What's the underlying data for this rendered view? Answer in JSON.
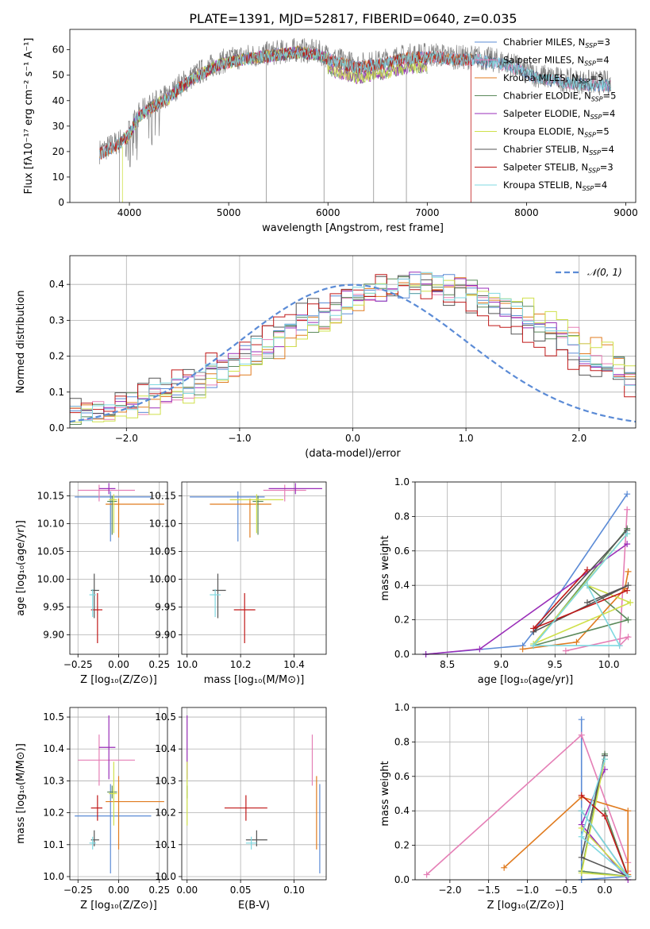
{
  "figure": {
    "title": "PLATE=1391, MJD=52817, FIBERID=0640, z=0.035"
  },
  "colors": {
    "Chabrier MILES": "#5b8bd6",
    "Salpeter MILES": "#e57fb6",
    "Kroupa MILES": "#e07b1f",
    "Chabrier ELODIE": "#5c8a5c",
    "Salpeter ELODIE": "#9a2eb8",
    "Kroupa ELODIE": "#cfe04a",
    "Chabrier STELIB": "#555555",
    "Salpeter STELIB": "#c01818",
    "Kroupa STELIB": "#7fd8e0",
    "gaussian": "#5b8bd6"
  },
  "chart_data": [
    {
      "id": "spectrum",
      "type": "line",
      "xlabel": "wavelength [Angstrom, rest frame]",
      "ylabel": "Flux [fλ10⁻¹⁷ erg cm⁻² s⁻¹ A⁻¹]",
      "xlim": [
        3400,
        9100
      ],
      "ylim": [
        0,
        68
      ],
      "xticks": [
        4000,
        5000,
        6000,
        7000,
        8000,
        9000
      ],
      "yticks": [
        0,
        10,
        20,
        30,
        40,
        50,
        60
      ],
      "legend_position": "right",
      "series": [
        {
          "name": "Chabrier MILES, N",
          "sub": "SSP",
          "suffix": "=3",
          "key": "Chabrier MILES"
        },
        {
          "name": "Salpeter MILES, N",
          "sub": "SSP",
          "suffix": "=4",
          "key": "Salpeter MILES"
        },
        {
          "name": "Kroupa MILES, N",
          "sub": "SSP",
          "suffix": "=5",
          "key": "Kroupa MILES"
        },
        {
          "name": "Chabrier ELODIE, N",
          "sub": "SSP",
          "suffix": "=5",
          "key": "Chabrier ELODIE"
        },
        {
          "name": "Salpeter ELODIE, N",
          "sub": "SSP",
          "suffix": "=4",
          "key": "Salpeter ELODIE"
        },
        {
          "name": "Kroupa ELODIE, N",
          "sub": "SSP",
          "suffix": "=5",
          "key": "Kroupa ELODIE"
        },
        {
          "name": "Chabrier STELIB, N",
          "sub": "SSP",
          "suffix": "=4",
          "key": "Chabrier STELIB"
        },
        {
          "name": "Salpeter STELIB, N",
          "sub": "SSP",
          "suffix": "=3",
          "key": "Salpeter STELIB"
        },
        {
          "name": "Kroupa STELIB, N",
          "sub": "SSP",
          "suffix": "=4",
          "key": "Kroupa STELIB"
        }
      ],
      "envelope": {
        "wavelength": [
          3700,
          3800,
          3900,
          4000,
          4100,
          4200,
          4300,
          4400,
          4500,
          4700,
          4900,
          5100,
          5300,
          5500,
          5700,
          5900,
          6100,
          6300,
          6500,
          6700,
          6900,
          7100,
          7300,
          7500,
          7800,
          8100,
          8400,
          8700,
          8850
        ],
        "flux": [
          20,
          22,
          24,
          28,
          35,
          38,
          40,
          42,
          46,
          51,
          55,
          57,
          58,
          59,
          60,
          59,
          56,
          54,
          55,
          57,
          58,
          58,
          57,
          57,
          55,
          50,
          48,
          47,
          47
        ]
      }
    },
    {
      "id": "residuals",
      "type": "histogram",
      "xlabel": "(data-model)/error",
      "ylabel": "Normed distribution",
      "xlim": [
        -2.5,
        2.5
      ],
      "ylim": [
        0,
        0.48
      ],
      "xticks": [
        -2,
        -1,
        0,
        1,
        2
      ],
      "yticks": [
        0.0,
        0.1,
        0.2,
        0.3,
        0.4
      ],
      "legend": "𝒩(0, 1)",
      "gaussian": {
        "mu": 0,
        "sigma": 1
      }
    },
    {
      "id": "age_vs_Z",
      "type": "scatter",
      "xlabel": "Z [log₁₀(Z/Z⊙)]",
      "ylabel": "age  [log₁₀(age/yr)]",
      "xlim": [
        -0.3,
        0.3
      ],
      "ylim": [
        9.865,
        10.175
      ],
      "xticks": [
        -0.25,
        0.0,
        0.25
      ],
      "yticks": [
        9.9,
        9.95,
        10.0,
        10.05,
        10.1,
        10.15
      ]
    },
    {
      "id": "age_vs_mass",
      "type": "scatter",
      "xlabel": "mass [log₁₀(M/M⊙)]",
      "xlim": [
        9.98,
        10.52
      ],
      "ylim": [
        9.865,
        10.175
      ],
      "xticks": [
        10.0,
        10.2,
        10.4
      ],
      "yticks": [
        9.9,
        9.95,
        10.0,
        10.05,
        10.1,
        10.15
      ]
    },
    {
      "id": "weight_vs_age",
      "type": "line",
      "xlabel": "age  [log₁₀(age/yr)]",
      "ylabel": "mass weight",
      "xlim": [
        8.2,
        10.25
      ],
      "ylim": [
        0,
        1.0
      ],
      "xticks": [
        8.5,
        9.0,
        9.5,
        10.0
      ],
      "yticks": [
        0.0,
        0.2,
        0.4,
        0.6,
        0.8,
        1.0
      ]
    },
    {
      "id": "mass_vs_Z",
      "type": "scatter",
      "xlabel": "Z [log₁₀(Z/Z⊙)]",
      "ylabel": "mass [log₁₀(M/M⊙)]",
      "xlim": [
        -0.3,
        0.3
      ],
      "ylim": [
        9.99,
        10.53
      ],
      "xticks": [
        -0.25,
        0.0,
        0.25
      ],
      "yticks": [
        10.0,
        10.1,
        10.2,
        10.3,
        10.4,
        10.5
      ]
    },
    {
      "id": "mass_vs_ebv",
      "type": "scatter",
      "xlabel": "E(B-V)",
      "xlim": [
        -0.005,
        0.13
      ],
      "ylim": [
        9.99,
        10.53
      ],
      "xticks": [
        0.0,
        0.05,
        0.1
      ],
      "yticks": [
        10.0,
        10.1,
        10.2,
        10.3,
        10.4,
        10.5
      ]
    },
    {
      "id": "weight_vs_Z",
      "type": "line",
      "xlabel": "Z [log₁₀(Z/Z⊙)]",
      "ylabel": "mass weight",
      "xlim": [
        -2.45,
        0.4
      ],
      "ylim": [
        0,
        1.0
      ],
      "xticks": [
        -2.0,
        -1.5,
        -1.0,
        -0.5,
        0.0
      ],
      "yticks": [
        0.0,
        0.2,
        0.4,
        0.6,
        0.8,
        1.0
      ]
    }
  ],
  "models": [
    {
      "key": "Chabrier MILES",
      "Z": -0.05,
      "Zerr": [
        0.22,
        0.25
      ],
      "age": 10.148,
      "ageErr": [
        0.08,
        0.01
      ],
      "mass": 10.19,
      "massErr": [
        0.18,
        0.1
      ],
      "ebv": 0.124,
      "ebvErr": 0.0,
      "ssp_age": [
        10.17,
        9.3,
        9.2,
        8.3
      ],
      "ssp_w": [
        0.93,
        0.13,
        0.05,
        0.0
      ],
      "ssp_Z": [
        -0.3,
        -0.3,
        -0.3,
        0.3
      ],
      "ssp_Zw": [
        0.93,
        0.05,
        0.0,
        0.02
      ]
    },
    {
      "key": "Salpeter MILES",
      "Z": -0.12,
      "Zerr": [
        0.13,
        0.22
      ],
      "age": 10.16,
      "ageErr": [
        0.02,
        0.01
      ],
      "mass": 10.365,
      "massErr": [
        0.08,
        0.08
      ],
      "ebv": 0.117,
      "ebvErr": 0.0,
      "ssp_age": [
        10.17,
        10.1,
        10.18,
        9.6
      ],
      "ssp_w": [
        0.84,
        0.05,
        0.1,
        0.02
      ],
      "ssp_Z": [
        -2.3,
        -0.3,
        0.3,
        0.3
      ],
      "ssp_Zw": [
        0.03,
        0.84,
        0.1,
        0.05
      ]
    },
    {
      "key": "Kroupa MILES",
      "Z": 0.0,
      "Zerr": [
        0.08,
        0.28
      ],
      "age": 10.135,
      "ageErr": [
        0.06,
        0.01
      ],
      "mass": 10.235,
      "massErr": [
        0.15,
        0.08
      ],
      "ebv": 0.121,
      "ebvErr": 0.0,
      "ssp_age": [
        10.18,
        10.15,
        9.7,
        9.2
      ],
      "ssp_w": [
        0.48,
        0.38,
        0.07,
        0.03
      ],
      "ssp_Z": [
        -1.3,
        -0.3,
        0.3,
        0.3
      ],
      "ssp_Zw": [
        0.07,
        0.48,
        0.4,
        0.03
      ]
    },
    {
      "key": "Chabrier ELODIE",
      "Z": -0.04,
      "Zerr": [
        0.03,
        0.03
      ],
      "age": 10.14,
      "ageErr": [
        0.06,
        0.01
      ],
      "mass": 10.265,
      "massErr": [
        0.02,
        0.02
      ],
      "ebv": 0.0,
      "ebvErr": 0.0,
      "ssp_age": [
        10.17,
        9.3,
        10.18,
        9.8
      ],
      "ssp_w": [
        0.73,
        0.05,
        0.2,
        0.4
      ],
      "ssp_Z": [
        0.0,
        -0.3,
        0.3,
        0.0
      ],
      "ssp_Zw": [
        0.73,
        0.05,
        0.02,
        0.4
      ]
    },
    {
      "key": "Salpeter ELODIE",
      "Z": -0.06,
      "Zerr": [
        0.06,
        0.04
      ],
      "age": 10.163,
      "ageErr": [
        0.01,
        0.01
      ],
      "mass": 10.405,
      "massErr": [
        0.1,
        0.1
      ],
      "ebv": 0.0,
      "ebvErr": 0.0,
      "ssp_age": [
        10.17,
        8.8,
        8.3
      ],
      "ssp_w": [
        0.64,
        0.03,
        0.0
      ],
      "ssp_Z": [
        0.0,
        -0.3,
        0.3
      ],
      "ssp_Zw": [
        0.64,
        0.32,
        0.0
      ]
    },
    {
      "key": "Kroupa ELODIE",
      "Z": -0.03,
      "Zerr": [
        0.03,
        0.02
      ],
      "age": 10.143,
      "ageErr": [
        0.06,
        0.01
      ],
      "mass": 10.26,
      "massErr": [
        0.1,
        0.1
      ],
      "ebv": 0.0,
      "ebvErr": 0.0,
      "ssp_age": [
        10.17,
        9.3,
        10.2,
        9.8
      ],
      "ssp_w": [
        0.7,
        0.06,
        0.3,
        0.4
      ],
      "ssp_Z": [
        0.0,
        -0.3,
        0.3,
        -0.3
      ],
      "ssp_Zw": [
        0.7,
        0.04,
        0.02,
        0.3
      ]
    },
    {
      "key": "Chabrier STELIB",
      "Z": -0.15,
      "Zerr": [
        0.02,
        0.03
      ],
      "age": 9.98,
      "ageErr": [
        0.05,
        0.03
      ],
      "mass": 10.115,
      "massErr": [
        0.02,
        0.03
      ],
      "ebv": 0.065,
      "ebvErr": 0.01,
      "ssp_age": [
        10.17,
        9.3,
        10.18,
        9.8
      ],
      "ssp_w": [
        0.72,
        0.13,
        0.4,
        0.3
      ],
      "ssp_Z": [
        0.0,
        -0.3,
        0.3,
        -0.3
      ],
      "ssp_Zw": [
        0.72,
        0.13,
        0.02,
        0.4
      ]
    },
    {
      "key": "Salpeter STELIB",
      "Z": -0.13,
      "Zerr": [
        0.04,
        0.03
      ],
      "age": 9.945,
      "ageErr": [
        0.06,
        0.03
      ],
      "mass": 10.215,
      "massErr": [
        0.04,
        0.04
      ],
      "ebv": 0.055,
      "ebvErr": 0.02,
      "ssp_age": [
        10.17,
        9.3,
        9.8
      ],
      "ssp_w": [
        0.37,
        0.15,
        0.49
      ],
      "ssp_Z": [
        -0.3,
        0.0,
        0.3
      ],
      "ssp_Zw": [
        0.49,
        0.37,
        0.02
      ]
    },
    {
      "key": "Kroupa STELIB",
      "Z": -0.16,
      "Zerr": [
        0.02,
        0.02
      ],
      "age": 9.972,
      "ageErr": [
        0.04,
        0.01
      ],
      "mass": 10.105,
      "massErr": [
        0.02,
        0.02
      ],
      "ebv": 0.06,
      "ebvErr": 0.005,
      "ssp_age": [
        10.17,
        9.3,
        10.1,
        9.8
      ],
      "ssp_w": [
        0.7,
        0.05,
        0.05,
        0.4
      ],
      "ssp_Z": [
        0.0,
        -0.3,
        0.3,
        -0.3
      ],
      "ssp_Zw": [
        0.7,
        0.25,
        0.02,
        0.4
      ]
    }
  ]
}
